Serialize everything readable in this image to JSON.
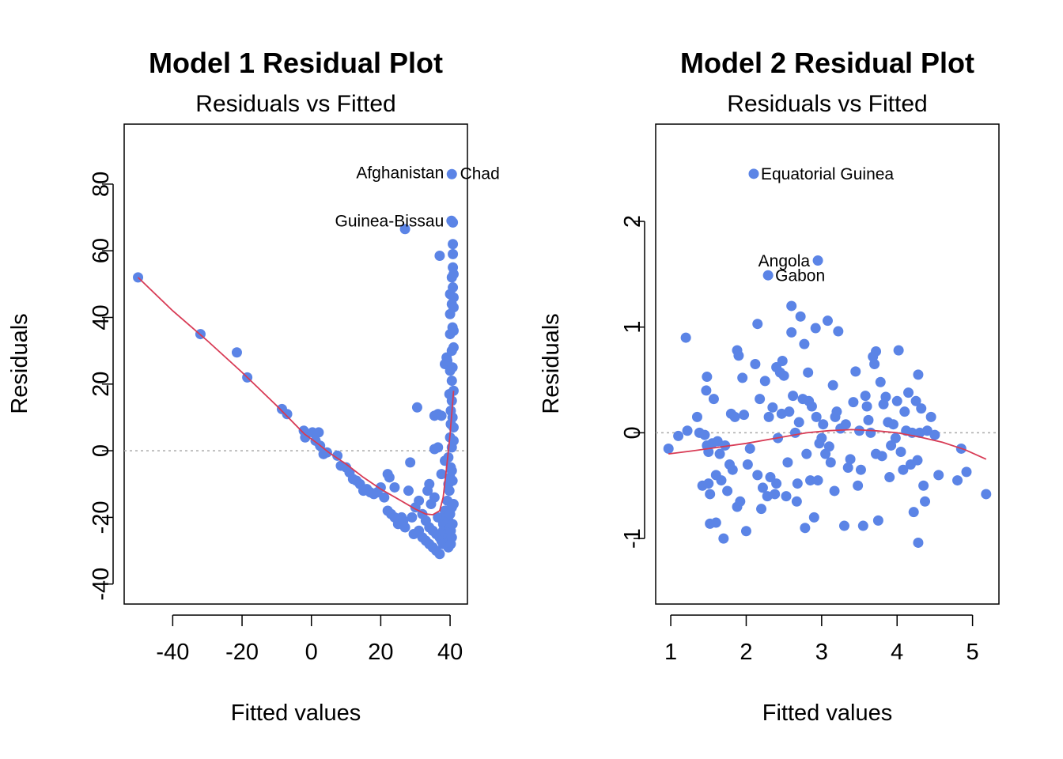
{
  "chart_data": [
    {
      "type": "scatter",
      "title": "Model 1 Residual Plot",
      "subtitle": "Residuals vs Fitted",
      "xlabel": "Fitted values",
      "ylabel": "Residuals",
      "xlim": [
        -54,
        45
      ],
      "ylim": [
        -46,
        98
      ],
      "xticks": [
        -40,
        -20,
        0,
        20,
        40
      ],
      "yticks": [
        -40,
        -20,
        0,
        20,
        40,
        60,
        80
      ],
      "point_color": "#5b84e6",
      "smooth_color": "#d83b55",
      "zero_line_color": "#aaaaaa",
      "annotations": [
        {
          "text": "Afghanistan",
          "x": 40.5,
          "y": 83.5,
          "side": "left"
        },
        {
          "text": "Chad",
          "x": 40.8,
          "y": 83.2,
          "side": "right"
        },
        {
          "text": "Guinea-Bissau",
          "x": 40.5,
          "y": 69.0,
          "side": "left"
        }
      ],
      "points": [
        [
          -50,
          52
        ],
        [
          -32,
          35
        ],
        [
          -21.5,
          29.5
        ],
        [
          -18.5,
          22
        ],
        [
          -8.5,
          12.5
        ],
        [
          -7,
          11
        ],
        [
          -2.2,
          6
        ],
        [
          -1.8,
          4
        ],
        [
          0.3,
          5.5
        ],
        [
          1.2,
          3
        ],
        [
          2.1,
          5.5
        ],
        [
          2.5,
          1.5
        ],
        [
          3.5,
          -1
        ],
        [
          4.5,
          -0.5
        ],
        [
          7.5,
          -1.5
        ],
        [
          8.5,
          -4.5
        ],
        [
          10,
          -5
        ],
        [
          11,
          -6.5
        ],
        [
          12,
          -8.5
        ],
        [
          13,
          -9
        ],
        [
          14,
          -10
        ],
        [
          15,
          -12
        ],
        [
          16,
          -11.5
        ],
        [
          17,
          -12.5
        ],
        [
          18,
          -13
        ],
        [
          19,
          -12.5
        ],
        [
          20,
          -11
        ],
        [
          21,
          -14
        ],
        [
          22,
          -7
        ],
        [
          22.5,
          -8
        ],
        [
          22,
          -18
        ],
        [
          23,
          -19
        ],
        [
          24,
          -11
        ],
        [
          24,
          -20
        ],
        [
          25,
          -22
        ],
        [
          26,
          -20
        ],
        [
          26.5,
          -21
        ],
        [
          27,
          -23
        ],
        [
          27,
          66.5
        ],
        [
          28,
          -12
        ],
        [
          28.5,
          -3.5
        ],
        [
          29,
          -20
        ],
        [
          29.5,
          -25
        ],
        [
          30,
          -17
        ],
        [
          30.5,
          13
        ],
        [
          31,
          -15
        ],
        [
          31,
          -24
        ],
        [
          32,
          -19
        ],
        [
          32,
          -26
        ],
        [
          33,
          -21
        ],
        [
          33,
          -27
        ],
        [
          33.5,
          -12
        ],
        [
          34,
          -10
        ],
        [
          34,
          -23
        ],
        [
          34,
          -28
        ],
        [
          34.5,
          -16
        ],
        [
          35,
          -24
        ],
        [
          35,
          -29
        ],
        [
          35.5,
          0.5
        ],
        [
          35.5,
          -14
        ],
        [
          35.5,
          10.5
        ],
        [
          36,
          -25
        ],
        [
          36,
          -30
        ],
        [
          36.5,
          11
        ],
        [
          36.5,
          1
        ],
        [
          36.5,
          -20
        ],
        [
          37,
          -26
        ],
        [
          37,
          -31
        ],
        [
          37,
          58.5
        ],
        [
          37.5,
          -27
        ],
        [
          37.5,
          -7
        ],
        [
          37.5,
          10.5
        ],
        [
          38,
          -22
        ],
        [
          38,
          -28
        ],
        [
          38,
          -24
        ],
        [
          38.5,
          26
        ],
        [
          38.5,
          -3
        ],
        [
          38.5,
          -18
        ],
        [
          39,
          -25
        ],
        [
          39,
          -20
        ],
        [
          39,
          28
        ],
        [
          39.2,
          -15
        ],
        [
          39.2,
          27
        ],
        [
          39.5,
          -29
        ],
        [
          39.5,
          -26
        ],
        [
          39.5,
          -21
        ],
        [
          39.5,
          -10
        ],
        [
          39.5,
          -2
        ],
        [
          39.8,
          -12
        ],
        [
          39.8,
          17
        ],
        [
          40,
          -23
        ],
        [
          40,
          -27
        ],
        [
          40,
          -19
        ],
        [
          40,
          -8
        ],
        [
          40,
          4
        ],
        [
          40,
          24
        ],
        [
          40,
          35
        ],
        [
          40,
          41
        ],
        [
          40,
          47
        ],
        [
          40.2,
          -28
        ],
        [
          40.2,
          -24
        ],
        [
          40.2,
          -5
        ],
        [
          40.2,
          8
        ],
        [
          40.2,
          12
        ],
        [
          40.4,
          69
        ],
        [
          40.5,
          83
        ],
        [
          40.5,
          -6
        ],
        [
          40.5,
          -26
        ],
        [
          40.5,
          -17
        ],
        [
          40.5,
          1
        ],
        [
          40.5,
          15
        ],
        [
          40.5,
          21
        ],
        [
          40.5,
          30
        ],
        [
          40.5,
          44
        ],
        [
          40.5,
          52
        ],
        [
          40.7,
          -9
        ],
        [
          40.7,
          10
        ],
        [
          40.7,
          25
        ],
        [
          40.7,
          37
        ],
        [
          40.7,
          -22
        ],
        [
          40.8,
          49
        ],
        [
          40.8,
          55
        ],
        [
          40.8,
          62
        ],
        [
          40.8,
          59
        ],
        [
          40.8,
          68.5
        ],
        [
          41,
          -16
        ],
        [
          41,
          3
        ],
        [
          41,
          7
        ],
        [
          41,
          18
        ],
        [
          41,
          31
        ],
        [
          41,
          36
        ],
        [
          41,
          43
        ],
        [
          41,
          46
        ],
        [
          41,
          53
        ]
      ],
      "smooth": [
        [
          -50,
          52
        ],
        [
          -40,
          42
        ],
        [
          -30,
          33
        ],
        [
          -20,
          23.5
        ],
        [
          -10,
          13.5
        ],
        [
          -2,
          5
        ],
        [
          2,
          2
        ],
        [
          5,
          -0.5
        ],
        [
          10,
          -4
        ],
        [
          15,
          -8
        ],
        [
          20,
          -11.5
        ],
        [
          25,
          -14.5
        ],
        [
          30,
          -17.5
        ],
        [
          33,
          -19
        ],
        [
          35,
          -19.2
        ],
        [
          37,
          -18
        ],
        [
          38,
          -14
        ],
        [
          39,
          -5
        ],
        [
          40,
          5
        ],
        [
          41,
          18
        ]
      ]
    },
    {
      "type": "scatter",
      "title": "Model 2 Residual Plot",
      "subtitle": "Residuals vs Fitted",
      "xlabel": "Fitted values",
      "ylabel": "Residuals",
      "xlim": [
        0.8,
        5.35
      ],
      "ylim": [
        -1.62,
        2.92
      ],
      "xticks": [
        1,
        2,
        3,
        4,
        5
      ],
      "yticks": [
        -1,
        0,
        1,
        2
      ],
      "point_color": "#5b84e6",
      "smooth_color": "#d83b55",
      "zero_line_color": "#aaaaaa",
      "annotations": [
        {
          "text": "Equatorial Guinea",
          "x": 2.1,
          "y": 2.45,
          "side": "right"
        },
        {
          "text": "Angola",
          "x": 2.95,
          "y": 1.63,
          "side": "left"
        },
        {
          "text": "Gabon",
          "x": 2.29,
          "y": 1.49,
          "side": "right"
        }
      ],
      "points": [
        [
          0.97,
          -0.15
        ],
        [
          1.1,
          -0.03
        ],
        [
          1.2,
          0.9
        ],
        [
          1.22,
          0.02
        ],
        [
          1.35,
          0.15
        ],
        [
          1.38,
          0.0
        ],
        [
          1.42,
          -0.5
        ],
        [
          1.45,
          -0.02
        ],
        [
          1.47,
          0.4
        ],
        [
          1.48,
          0.53
        ],
        [
          1.48,
          -0.12
        ],
        [
          1.5,
          -0.48
        ],
        [
          1.5,
          -0.18
        ],
        [
          1.52,
          -0.58
        ],
        [
          1.52,
          -0.86
        ],
        [
          1.55,
          -0.1
        ],
        [
          1.57,
          0.32
        ],
        [
          1.6,
          -0.85
        ],
        [
          1.6,
          -0.4
        ],
        [
          1.62,
          -0.08
        ],
        [
          1.65,
          -0.2
        ],
        [
          1.67,
          -0.45
        ],
        [
          1.7,
          -1.0
        ],
        [
          1.72,
          -0.12
        ],
        [
          1.75,
          -0.55
        ],
        [
          1.78,
          -0.3
        ],
        [
          1.8,
          0.18
        ],
        [
          1.82,
          -0.35
        ],
        [
          1.85,
          0.15
        ],
        [
          1.88,
          0.78
        ],
        [
          1.88,
          -0.7
        ],
        [
          1.9,
          0.73
        ],
        [
          1.92,
          -0.65
        ],
        [
          1.95,
          0.52
        ],
        [
          1.97,
          0.17
        ],
        [
          2.0,
          -0.93
        ],
        [
          2.02,
          -0.3
        ],
        [
          2.05,
          -0.15
        ],
        [
          2.1,
          2.45
        ],
        [
          2.12,
          0.65
        ],
        [
          2.15,
          -0.4
        ],
        [
          2.15,
          1.03
        ],
        [
          2.18,
          0.32
        ],
        [
          2.2,
          -0.72
        ],
        [
          2.22,
          -0.52
        ],
        [
          2.25,
          0.49
        ],
        [
          2.28,
          -0.6
        ],
        [
          2.29,
          1.49
        ],
        [
          2.3,
          0.15
        ],
        [
          2.32,
          -0.42
        ],
        [
          2.35,
          0.24
        ],
        [
          2.38,
          -0.58
        ],
        [
          2.4,
          -0.48
        ],
        [
          2.4,
          0.62
        ],
        [
          2.42,
          -0.05
        ],
        [
          2.45,
          0.57
        ],
        [
          2.47,
          0.18
        ],
        [
          2.48,
          0.68
        ],
        [
          2.5,
          0.54
        ],
        [
          2.53,
          -0.6
        ],
        [
          2.55,
          -0.28
        ],
        [
          2.57,
          0.2
        ],
        [
          2.6,
          0.95
        ],
        [
          2.6,
          1.2
        ],
        [
          2.62,
          0.35
        ],
        [
          2.65,
          0.0
        ],
        [
          2.67,
          -0.65
        ],
        [
          2.68,
          -0.48
        ],
        [
          2.7,
          0.1
        ],
        [
          2.72,
          1.1
        ],
        [
          2.75,
          0.32
        ],
        [
          2.77,
          0.84
        ],
        [
          2.78,
          -0.9
        ],
        [
          2.8,
          -0.2
        ],
        [
          2.82,
          0.57
        ],
        [
          2.83,
          0.3
        ],
        [
          2.85,
          -0.45
        ],
        [
          2.87,
          0.25
        ],
        [
          2.9,
          -0.8
        ],
        [
          2.92,
          0.99
        ],
        [
          2.93,
          0.15
        ],
        [
          2.95,
          1.63
        ],
        [
          2.95,
          -0.45
        ],
        [
          2.97,
          -0.1
        ],
        [
          3.0,
          -0.05
        ],
        [
          3.02,
          0.08
        ],
        [
          3.05,
          -0.2
        ],
        [
          3.08,
          1.06
        ],
        [
          3.1,
          -0.13
        ],
        [
          3.12,
          -0.28
        ],
        [
          3.15,
          0.45
        ],
        [
          3.17,
          -0.55
        ],
        [
          3.18,
          0.15
        ],
        [
          3.2,
          0.2
        ],
        [
          3.22,
          0.96
        ],
        [
          3.25,
          0.04
        ],
        [
          3.3,
          -0.88
        ],
        [
          3.32,
          0.08
        ],
        [
          3.35,
          -0.33
        ],
        [
          3.38,
          -0.25
        ],
        [
          3.42,
          0.29
        ],
        [
          3.45,
          0.58
        ],
        [
          3.48,
          -0.5
        ],
        [
          3.5,
          0.02
        ],
        [
          3.52,
          -0.35
        ],
        [
          3.55,
          -0.88
        ],
        [
          3.58,
          0.35
        ],
        [
          3.6,
          0.25
        ],
        [
          3.62,
          0.12
        ],
        [
          3.65,
          0.0
        ],
        [
          3.68,
          0.72
        ],
        [
          3.7,
          0.65
        ],
        [
          3.72,
          0.77
        ],
        [
          3.72,
          -0.2
        ],
        [
          3.75,
          -0.83
        ],
        [
          3.78,
          0.48
        ],
        [
          3.8,
          -0.22
        ],
        [
          3.82,
          0.27
        ],
        [
          3.85,
          0.34
        ],
        [
          3.88,
          0.1
        ],
        [
          3.9,
          -0.42
        ],
        [
          3.92,
          -0.12
        ],
        [
          3.95,
          0.08
        ],
        [
          3.98,
          -0.05
        ],
        [
          4.0,
          0.3
        ],
        [
          4.02,
          0.78
        ],
        [
          4.05,
          -0.18
        ],
        [
          4.08,
          -0.35
        ],
        [
          4.1,
          0.2
        ],
        [
          4.12,
          0.02
        ],
        [
          4.15,
          0.38
        ],
        [
          4.18,
          -0.3
        ],
        [
          4.2,
          0.0
        ],
        [
          4.22,
          -0.75
        ],
        [
          4.25,
          0.3
        ],
        [
          4.27,
          -0.26
        ],
        [
          4.28,
          0.55
        ],
        [
          4.28,
          -1.04
        ],
        [
          4.3,
          0.0
        ],
        [
          4.32,
          0.23
        ],
        [
          4.35,
          -0.5
        ],
        [
          4.37,
          -0.65
        ],
        [
          4.4,
          0.02
        ],
        [
          4.45,
          0.15
        ],
        [
          4.5,
          -0.02
        ],
        [
          4.55,
          -0.4
        ],
        [
          4.8,
          -0.45
        ],
        [
          4.85,
          -0.15
        ],
        [
          4.92,
          -0.37
        ],
        [
          5.18,
          -0.58
        ]
      ],
      "smooth": [
        [
          0.97,
          -0.2
        ],
        [
          1.3,
          -0.17
        ],
        [
          1.6,
          -0.14
        ],
        [
          2.0,
          -0.1
        ],
        [
          2.4,
          -0.05
        ],
        [
          2.8,
          0.0
        ],
        [
          3.1,
          0.02
        ],
        [
          3.4,
          0.03
        ],
        [
          3.7,
          0.02
        ],
        [
          4.0,
          0.0
        ],
        [
          4.3,
          -0.04
        ],
        [
          4.6,
          -0.09
        ],
        [
          4.9,
          -0.16
        ],
        [
          5.18,
          -0.25
        ]
      ]
    }
  ]
}
